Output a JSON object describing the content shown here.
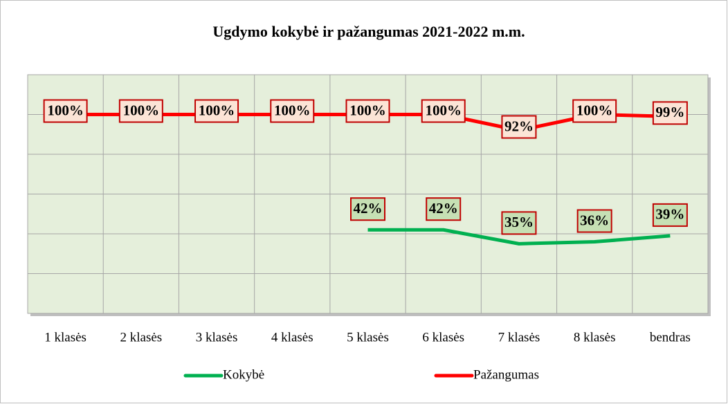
{
  "chart_data": {
    "type": "line",
    "title": "Ugdymo kokybė ir pažangumas 2021-2022 m.m.",
    "categories": [
      "1 klasės",
      "2 klasės",
      "3 klasės",
      "4 klasės",
      "5 klasės",
      "6 klasės",
      "7 klasės",
      "8 klasės",
      "bendras"
    ],
    "series": [
      {
        "name": "Kokybė",
        "color": "#00b050",
        "label_fill": "#c6e0b4",
        "values": [
          null,
          null,
          null,
          null,
          42,
          42,
          35,
          36,
          39
        ],
        "value_labels": [
          null,
          null,
          null,
          null,
          "42%",
          "42%",
          "35%",
          "36%",
          "39%"
        ]
      },
      {
        "name": "Pažangumas",
        "color": "#ff0000",
        "label_fill": "#fce4d6",
        "values": [
          100,
          100,
          100,
          100,
          100,
          100,
          92,
          100,
          99
        ],
        "value_labels": [
          "100%",
          "100%",
          "100%",
          "100%",
          "100%",
          "100%",
          "92%",
          "100%",
          "99%"
        ]
      }
    ],
    "ylim": [
      0,
      120
    ],
    "yticks": [
      0,
      20,
      40,
      60,
      80,
      100,
      120
    ],
    "grid": true,
    "legend": "bottom"
  }
}
